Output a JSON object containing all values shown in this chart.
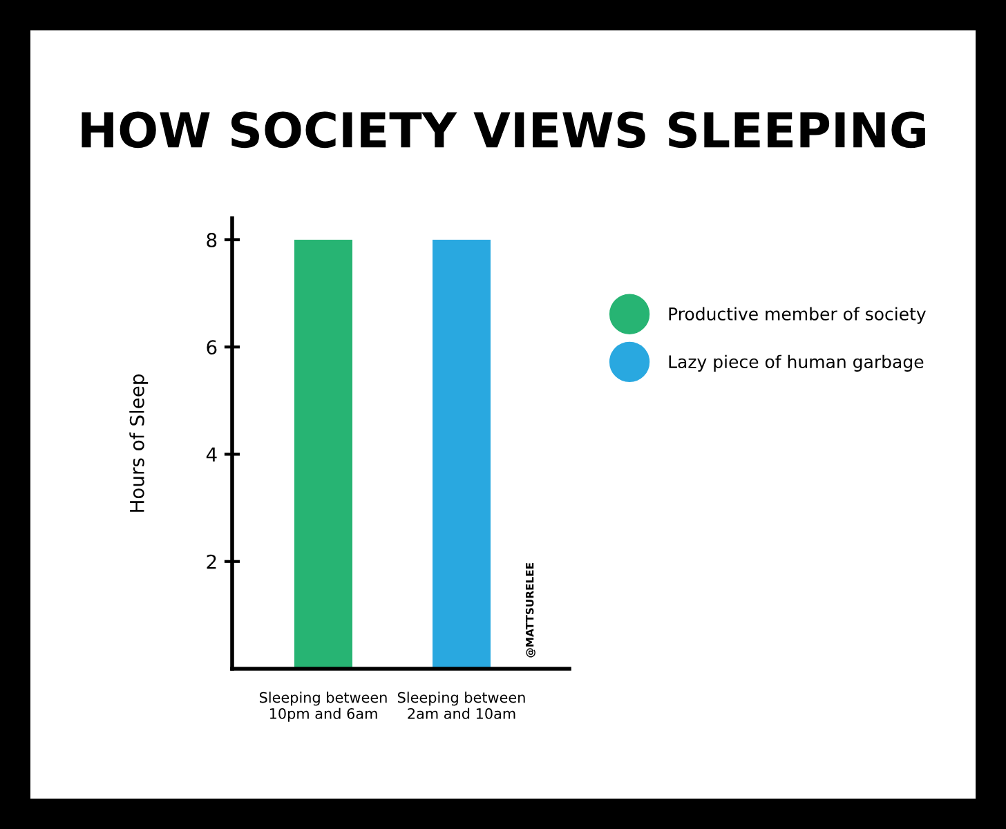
{
  "chart_data": {
    "type": "bar",
    "title": "HOW SOCIETY VIEWS SLEEPING",
    "ylabel": "Hours of Sleep",
    "categories": [
      "Sleeping between\n10pm and 6am",
      "Sleeping between\n2am and 10am"
    ],
    "series": [
      {
        "name": "Productive member of society",
        "color": "#27b473",
        "values": [
          8,
          null
        ]
      },
      {
        "name": "Lazy piece of human garbage",
        "color": "#29a8e0",
        "values": [
          null,
          8
        ]
      }
    ],
    "ylim": [
      0,
      8.4
    ],
    "yticks": [
      2,
      4,
      6,
      8
    ],
    "grid": false,
    "legend": "right",
    "annotations": [
      "@MATTSURELEE"
    ]
  }
}
